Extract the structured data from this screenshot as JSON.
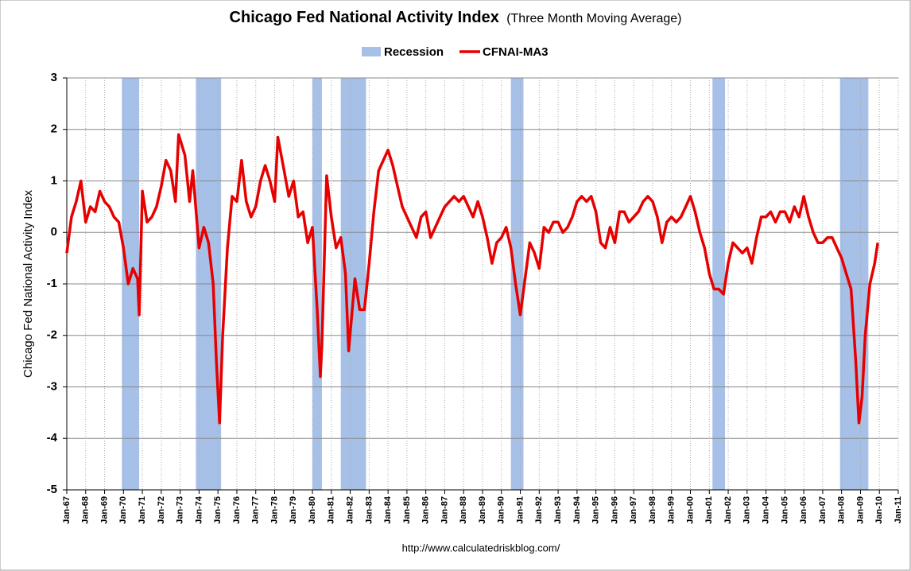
{
  "chart_data": {
    "type": "line",
    "title": "Chicago Fed National Activity Index",
    "subtitle": "(Three Month Moving Average)",
    "y_label": "Chicago Fed National Activity Index",
    "source": "http://www.calculatedriskblog.com/",
    "ylim": [
      -5,
      3
    ],
    "yticks": [
      -5,
      -4,
      -3,
      -2,
      -1,
      0,
      1,
      2,
      3
    ],
    "grid": true,
    "xlim": [
      "Jan-67",
      "Jan-11"
    ],
    "xticks": [
      "Jan-67",
      "Jan-68",
      "Jan-69",
      "Jan-70",
      "Jan-71",
      "Jan-72",
      "Jan-73",
      "Jan-74",
      "Jan-75",
      "Jan-76",
      "Jan-77",
      "Jan-78",
      "Jan-79",
      "Jan-80",
      "Jan-81",
      "Jan-82",
      "Jan-83",
      "Jan-84",
      "Jan-85",
      "Jan-86",
      "Jan-87",
      "Jan-88",
      "Jan-89",
      "Jan-90",
      "Jan-91",
      "Jan-92",
      "Jan-93",
      "Jan-94",
      "Jan-95",
      "Jan-96",
      "Jan-97",
      "Jan-98",
      "Jan-99",
      "Jan-00",
      "Jan-01",
      "Jan-02",
      "Jan-03",
      "Jan-04",
      "Jan-05",
      "Jan-06",
      "Jan-07",
      "Jan-08",
      "Jan-09",
      "Jan-10",
      "Jan-11"
    ],
    "shading": {
      "name": "Recession",
      "color": "#a6c0e8",
      "periods": [
        [
          "Dec-69",
          "Nov-70"
        ],
        [
          "Nov-73",
          "Mar-75"
        ],
        [
          "Jan-80",
          "Jul-80"
        ],
        [
          "Jul-81",
          "Nov-82"
        ],
        [
          "Jul-90",
          "Mar-91"
        ],
        [
          "Mar-01",
          "Nov-01"
        ],
        [
          "Dec-07",
          "Jun-09"
        ]
      ]
    },
    "x": [
      "Jan-67",
      "Apr-67",
      "Jul-67",
      "Oct-67",
      "Jan-68",
      "Apr-68",
      "Jul-68",
      "Oct-68",
      "Jan-69",
      "Apr-69",
      "Jul-69",
      "Oct-69",
      "Jan-70",
      "Apr-70",
      "Jul-70",
      "Oct-70",
      "Nov-70",
      "Jan-71",
      "Apr-71",
      "Jul-71",
      "Oct-71",
      "Jan-72",
      "Apr-72",
      "Jul-72",
      "Oct-72",
      "Dec-72",
      "Apr-73",
      "Jul-73",
      "Sep-73",
      "Jan-74",
      "Apr-74",
      "Jul-74",
      "Oct-74",
      "Dec-74",
      "Feb-75",
      "Apr-75",
      "Jul-75",
      "Oct-75",
      "Jan-76",
      "Apr-76",
      "Jul-76",
      "Oct-76",
      "Jan-77",
      "Apr-77",
      "Jul-77",
      "Oct-77",
      "Jan-78",
      "Mar-78",
      "Jul-78",
      "Oct-78",
      "Jan-79",
      "Apr-79",
      "Jul-79",
      "Oct-79",
      "Jan-80",
      "Apr-80",
      "Jun-80",
      "Jul-80",
      "Oct-80",
      "Jan-81",
      "Apr-81",
      "Jul-81",
      "Oct-81",
      "Dec-81",
      "Apr-82",
      "Jul-82",
      "Oct-82",
      "Jan-83",
      "Apr-83",
      "Jul-83",
      "Oct-83",
      "Jan-84",
      "Apr-84",
      "Jul-84",
      "Oct-84",
      "Jan-85",
      "Apr-85",
      "Jul-85",
      "Oct-85",
      "Jan-86",
      "Apr-86",
      "Jul-86",
      "Oct-86",
      "Jan-87",
      "Apr-87",
      "Jul-87",
      "Oct-87",
      "Jan-88",
      "Apr-88",
      "Jul-88",
      "Oct-88",
      "Jan-89",
      "Apr-89",
      "Jul-89",
      "Oct-89",
      "Jan-90",
      "Apr-90",
      "Jul-90",
      "Oct-90",
      "Jan-91",
      "Apr-91",
      "Jul-91",
      "Oct-91",
      "Jan-92",
      "Apr-92",
      "Jul-92",
      "Oct-92",
      "Jan-93",
      "Apr-93",
      "Jul-93",
      "Oct-93",
      "Jan-94",
      "Apr-94",
      "Jul-94",
      "Oct-94",
      "Jan-95",
      "Apr-95",
      "Jul-95",
      "Oct-95",
      "Jan-96",
      "Apr-96",
      "Jul-96",
      "Oct-96",
      "Jan-97",
      "Apr-97",
      "Jul-97",
      "Oct-97",
      "Jan-98",
      "Apr-98",
      "Jul-98",
      "Oct-98",
      "Jan-99",
      "Apr-99",
      "Jul-99",
      "Oct-99",
      "Jan-00",
      "Apr-00",
      "Jul-00",
      "Oct-00",
      "Jan-01",
      "Apr-01",
      "Jul-01",
      "Oct-01",
      "Jan-02",
      "Apr-02",
      "Jul-02",
      "Oct-02",
      "Jan-03",
      "Apr-03",
      "Jul-03",
      "Oct-03",
      "Jan-04",
      "Apr-04",
      "Jul-04",
      "Oct-04",
      "Jan-05",
      "Apr-05",
      "Jul-05",
      "Oct-05",
      "Jan-06",
      "Apr-06",
      "Jul-06",
      "Oct-06",
      "Jan-07",
      "Apr-07",
      "Jul-07",
      "Oct-07",
      "Jan-08",
      "Apr-08",
      "Jul-08",
      "Oct-08",
      "Dec-08",
      "Feb-09",
      "Apr-09",
      "Jul-09",
      "Oct-09",
      "Dec-09"
    ],
    "series": [
      {
        "name": "CFNAI-MA3",
        "color": "#e60000",
        "values": [
          -0.4,
          0.3,
          0.6,
          1.0,
          0.2,
          0.5,
          0.4,
          0.8,
          0.6,
          0.5,
          0.3,
          0.2,
          -0.3,
          -1.0,
          -0.7,
          -0.9,
          -1.6,
          0.8,
          0.2,
          0.3,
          0.5,
          0.9,
          1.4,
          1.2,
          0.6,
          1.9,
          1.5,
          0.6,
          1.2,
          -0.3,
          0.1,
          -0.2,
          -1.0,
          -2.5,
          -3.7,
          -2.0,
          -0.3,
          0.7,
          0.6,
          1.4,
          0.6,
          0.3,
          0.5,
          1.0,
          1.3,
          1.0,
          0.6,
          1.85,
          1.2,
          0.7,
          1.0,
          0.3,
          0.4,
          -0.2,
          0.1,
          -1.5,
          -2.8,
          -2.2,
          1.1,
          0.3,
          -0.3,
          -0.1,
          -0.8,
          -2.3,
          -0.9,
          -1.5,
          -1.5,
          -0.6,
          0.4,
          1.2,
          1.4,
          1.6,
          1.3,
          0.9,
          0.5,
          0.3,
          0.1,
          -0.1,
          0.3,
          0.4,
          -0.1,
          0.1,
          0.3,
          0.5,
          0.6,
          0.7,
          0.6,
          0.7,
          0.5,
          0.3,
          0.6,
          0.3,
          -0.1,
          -0.6,
          -0.2,
          -0.1,
          0.1,
          -0.3,
          -1.0,
          -1.6,
          -0.9,
          -0.2,
          -0.4,
          -0.7,
          0.1,
          0.0,
          0.2,
          0.2,
          0.0,
          0.1,
          0.3,
          0.6,
          0.7,
          0.6,
          0.7,
          0.4,
          -0.2,
          -0.3,
          0.1,
          -0.2,
          0.4,
          0.4,
          0.2,
          0.3,
          0.4,
          0.6,
          0.7,
          0.6,
          0.3,
          -0.2,
          0.2,
          0.3,
          0.2,
          0.3,
          0.5,
          0.7,
          0.4,
          0.0,
          -0.3,
          -0.8,
          -1.1,
          -1.1,
          -1.2,
          -0.6,
          -0.2,
          -0.3,
          -0.4,
          -0.3,
          -0.6,
          -0.1,
          0.3,
          0.3,
          0.4,
          0.2,
          0.4,
          0.4,
          0.2,
          0.5,
          0.3,
          0.7,
          0.3,
          0.0,
          -0.2,
          -0.2,
          -0.1,
          -0.1,
          -0.3,
          -0.5,
          -0.8,
          -1.1,
          -2.5,
          -3.7,
          -3.2,
          -2.0,
          -1.0,
          -0.6,
          -0.2
        ]
      }
    ]
  }
}
